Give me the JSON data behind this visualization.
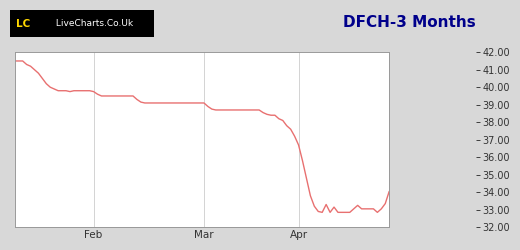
{
  "title": "DFCH-3 Months",
  "line_color": "#e87070",
  "bg_color": "#d8d8d8",
  "plot_bg_color": "#ffffff",
  "title_color": "#00008b",
  "grid_color": "#cccccc",
  "y_min": 32.0,
  "y_max": 42.0,
  "y_ticks": [
    32.0,
    33.0,
    34.0,
    35.0,
    36.0,
    37.0,
    38.0,
    39.0,
    40.0,
    41.0,
    42.0
  ],
  "x_tick_labels": [
    "Feb",
    "Mar",
    "Apr"
  ],
  "x_tick_positions": [
    20,
    48,
    72
  ],
  "prices": [
    41.5,
    41.5,
    41.5,
    41.3,
    41.2,
    41.0,
    40.8,
    40.5,
    40.2,
    40.0,
    39.9,
    39.8,
    39.8,
    39.8,
    39.75,
    39.8,
    39.8,
    39.8,
    39.8,
    39.8,
    39.75,
    39.6,
    39.5,
    39.5,
    39.5,
    39.5,
    39.5,
    39.5,
    39.5,
    39.5,
    39.5,
    39.3,
    39.15,
    39.1,
    39.1,
    39.1,
    39.1,
    39.1,
    39.1,
    39.1,
    39.1,
    39.1,
    39.1,
    39.1,
    39.1,
    39.1,
    39.1,
    39.1,
    39.1,
    38.9,
    38.75,
    38.7,
    38.7,
    38.7,
    38.7,
    38.7,
    38.7,
    38.7,
    38.7,
    38.7,
    38.7,
    38.7,
    38.7,
    38.55,
    38.45,
    38.4,
    38.4,
    38.2,
    38.1,
    37.8,
    37.6,
    37.2,
    36.7,
    35.8,
    34.8,
    33.8,
    33.2,
    32.9,
    32.85,
    33.3,
    32.85,
    33.15,
    32.85,
    32.85,
    32.85,
    32.85,
    33.05,
    33.25,
    33.05,
    33.05,
    33.05,
    33.05,
    32.85,
    33.05,
    33.35,
    34.05
  ]
}
